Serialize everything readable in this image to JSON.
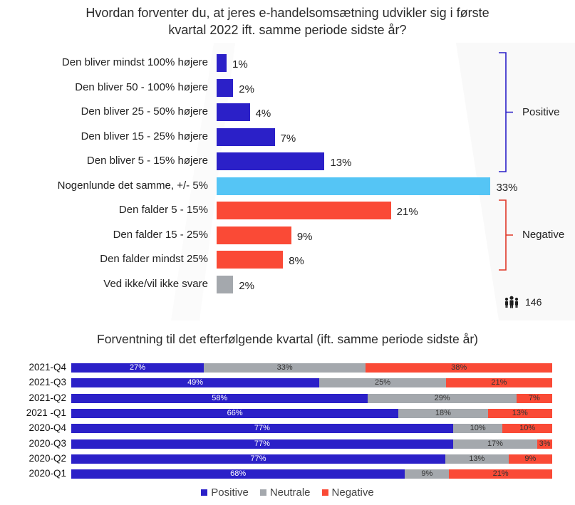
{
  "colors": {
    "positive": "#2b20c8",
    "neutral_same": "#55c5f5",
    "negative": "#fa4a36",
    "no_answer": "#a4a8ad",
    "neutral": "#a4a8ad",
    "positive_brace": "#2b20c8",
    "negative_brace": "#e03828"
  },
  "chart_data": [
    {
      "type": "bar",
      "orientation": "horizontal",
      "title": "Hvordan forventer du, at jeres e-handelsomsætning udvikler sig i første kvartal 2022 ift. samme periode sidste år?",
      "title_lines": [
        "Hvordan forventer du, at jeres e-handelsomsætning udvikler sig i første",
        "kvartal 2022 ift. samme periode sidste år?"
      ],
      "categories": [
        "Den bliver mindst 100% højere",
        "Den bliver 50 - 100% højere",
        "Den bliver 25 - 50% højere",
        "Den bliver 15 - 25% højere",
        "Den bliver 5 - 15% højere",
        "Nogenlunde det samme, +/- 5%",
        "Den falder 5 - 15%",
        "Den falder 15 - 25%",
        "Den falder mindst 25%",
        "Ved ikke/vil ikke svare"
      ],
      "values": [
        1,
        2,
        4,
        7,
        13,
        33,
        21,
        9,
        8,
        2
      ],
      "value_labels": [
        "1%",
        "2%",
        "4%",
        "7%",
        "13%",
        "33%",
        "21%",
        "9%",
        "8%",
        "2%"
      ],
      "bar_color_keys": [
        "positive",
        "positive",
        "positive",
        "positive",
        "positive",
        "neutral_same",
        "negative",
        "negative",
        "negative",
        "no_answer"
      ],
      "groups": [
        {
          "label": "Positive",
          "categories": [
            0,
            4
          ],
          "color_key": "positive_brace"
        },
        {
          "label": "Negative",
          "categories": [
            6,
            8
          ],
          "color_key": "negative_brace"
        }
      ],
      "unit": "%",
      "respondents": "146",
      "respondents_icon": "people-icon"
    },
    {
      "type": "bar",
      "orientation": "horizontal",
      "stacked": true,
      "title": "Forventning til det efterfølgende kvartal (ift. samme periode sidste år)",
      "categories": [
        "2021-Q4",
        "2021-Q3",
        "2021-Q2",
        "2021 -Q1",
        "2020-Q4",
        "2020-Q3",
        "2020-Q2",
        "2020-Q1"
      ],
      "series": [
        {
          "name": "Positive",
          "color_key": "positive",
          "values": [
            27,
            49,
            58,
            66,
            77,
            77,
            77,
            68
          ]
        },
        {
          "name": "Neutrale",
          "color_key": "neutral",
          "values": [
            33,
            25,
            29,
            18,
            10,
            17,
            13,
            9
          ]
        },
        {
          "name": "Negative",
          "color_key": "negative",
          "values": [
            38,
            21,
            7,
            13,
            10,
            3,
            9,
            21
          ]
        }
      ],
      "value_labels": [
        [
          "27%",
          "33%",
          "38%"
        ],
        [
          "49%",
          "25%",
          "21%"
        ],
        [
          "58%",
          "29%",
          "7%"
        ],
        [
          "66%",
          "18%",
          "13%"
        ],
        [
          "77%",
          "10%",
          "10%"
        ],
        [
          "77%",
          "17%",
          "3%"
        ],
        [
          "77%",
          "13%",
          "9%"
        ],
        [
          "68%",
          "9%",
          "21%"
        ]
      ],
      "legend_position": "bottom",
      "xlim": [
        0,
        100
      ]
    }
  ]
}
